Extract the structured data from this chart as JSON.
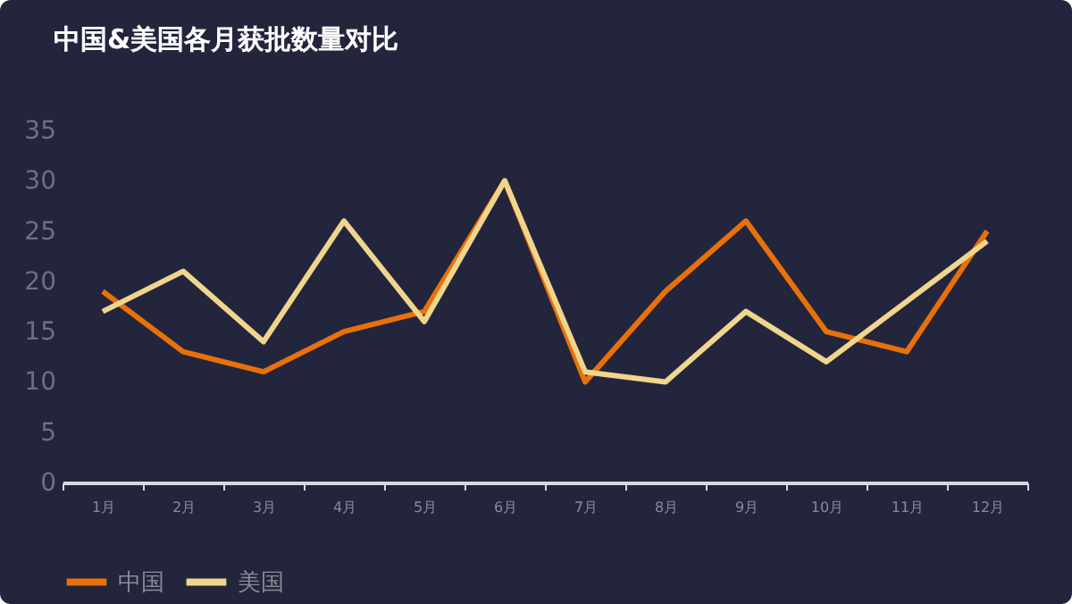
{
  "chart_data": {
    "type": "line",
    "title": "中国&美国各月获批数量对比",
    "categories": [
      "1月",
      "2月",
      "3月",
      "4月",
      "5月",
      "6月",
      "7月",
      "8月",
      "9月",
      "10月",
      "11月",
      "12月"
    ],
    "series": [
      {
        "name": "中国",
        "color": "#e8710a",
        "values": [
          19,
          13,
          11,
          15,
          17,
          30,
          10,
          19,
          26,
          15,
          13,
          25
        ]
      },
      {
        "name": "美国",
        "color": "#f0d58c",
        "values": [
          17,
          21,
          14,
          26,
          16,
          30,
          11,
          10,
          17,
          12,
          18,
          24
        ]
      }
    ],
    "ylim": [
      0,
      35
    ],
    "yticks": [
      0,
      5,
      10,
      15,
      20,
      25,
      30,
      35
    ],
    "grid": false,
    "legend": "bottom",
    "marker": "none",
    "line_style": "solid"
  }
}
